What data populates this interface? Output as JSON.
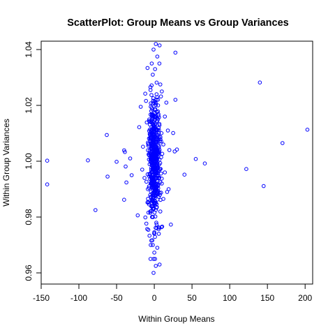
{
  "chart_data": {
    "type": "scatter",
    "title": "ScatterPlot: Group Means vs Group Variances",
    "xlabel": "Within Group Means",
    "ylabel": "Within Group Variances",
    "xlim": [
      -150,
      210
    ],
    "ylim": [
      0.956,
      1.043
    ],
    "x_ticks": [
      -150,
      -100,
      -50,
      0,
      50,
      100,
      150,
      200
    ],
    "x_tick_labels": [
      "-150",
      "-100",
      "-50",
      "0",
      "50",
      "100",
      "150",
      "200"
    ],
    "y_ticks": [
      0.96,
      0.98,
      1.0,
      1.02,
      1.04
    ],
    "y_tick_labels": [
      "0.96",
      "0.98",
      "1.00",
      "1.02",
      "1.04"
    ],
    "grid": false,
    "legend": "none",
    "point_color": "#0000ff",
    "points": [
      [
        -142,
        1.0002
      ],
      [
        -142,
        0.9917
      ],
      [
        -88,
        1.0003
      ],
      [
        -78,
        0.9825
      ],
      [
        -63,
        1.0094
      ],
      [
        -62,
        0.9945
      ],
      [
        -50,
        0.9998
      ],
      [
        -40,
        0.9862
      ],
      [
        -40,
        1.0039
      ],
      [
        -39,
        1.0033
      ],
      [
        -38,
        0.9981
      ],
      [
        -37,
        0.9924
      ],
      [
        -32,
        1.001
      ],
      [
        -30,
        0.995
      ],
      [
        -22,
        0.9806
      ],
      [
        -20,
        1.0122
      ],
      [
        -18,
        1.0195
      ],
      [
        -16,
        0.997
      ],
      [
        -15,
        1.0052
      ],
      [
        -13,
        0.994
      ],
      [
        -11,
        1.0216
      ],
      [
        -10,
        1.0139
      ],
      [
        -9,
        1.0334
      ],
      [
        -9,
        0.9852
      ],
      [
        -8,
        1.0061
      ],
      [
        -7,
        0.991
      ],
      [
        -5,
        1.0255
      ],
      [
        -5,
        1.0
      ],
      [
        -4,
        1.018
      ],
      [
        -3,
        0.98
      ],
      [
        -2,
        1.031
      ],
      [
        -2,
        0.97
      ],
      [
        -1,
        1.04
      ],
      [
        -1,
        0.96
      ],
      [
        0,
        1.015
      ],
      [
        0,
        0.985
      ],
      [
        1,
        1.033
      ],
      [
        1,
        0.965
      ],
      [
        2,
        1.042
      ],
      [
        2,
        0.9625
      ],
      [
        3,
        1.024
      ],
      [
        3,
        0.976
      ],
      [
        4,
        1.0375
      ],
      [
        4,
        0.969
      ],
      [
        5,
        1.02
      ],
      [
        5,
        0.989
      ],
      [
        6,
        1.01
      ],
      [
        6,
        0.974
      ],
      [
        7,
        1.0415
      ],
      [
        7,
        0.963
      ],
      [
        8,
        1.0275
      ],
      [
        8,
        0.982
      ],
      [
        10,
        1.025
      ],
      [
        10,
        0.992
      ],
      [
        12,
        1.006
      ],
      [
        12,
        0.9865
      ],
      [
        14,
        1.016
      ],
      [
        14,
        0.996
      ],
      [
        16,
        1.021
      ],
      [
        17,
        0.989
      ],
      [
        18,
        1.011
      ],
      [
        19,
        0.99
      ],
      [
        20,
        1.004
      ],
      [
        22,
        0.9773
      ],
      [
        25,
        1.0101
      ],
      [
        27,
        1.0035
      ],
      [
        28,
        1.022
      ],
      [
        28,
        1.0389
      ],
      [
        30,
        1.0042
      ],
      [
        40,
        0.9952
      ],
      [
        55,
        1.0008
      ],
      [
        67,
        0.9992
      ],
      [
        122,
        0.9972
      ],
      [
        140,
        1.0282
      ],
      [
        145,
        0.9911
      ],
      [
        170,
        1.0065
      ],
      [
        203,
        1.0113
      ]
    ],
    "dense_cluster": {
      "x_center": 0,
      "x_spread": 9,
      "y_center": 1.0,
      "y_spread": 0.0115,
      "count": 520,
      "seed": 7
    }
  }
}
